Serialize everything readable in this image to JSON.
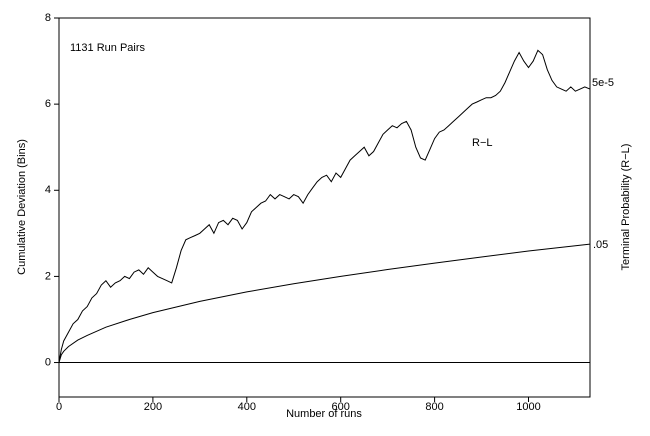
{
  "chart_data": {
    "type": "line",
    "xlabel": "Number of runs",
    "ylabel": "Cumulative Deviation (Bins)",
    "y2label": "Terminal Probability (R−L)",
    "annotations": [
      "1131 Run Pairs",
      "5e-5"
    ],
    "xlim": [
      0,
      1131
    ],
    "xticks": [
      0,
      200,
      400,
      600,
      800,
      1000
    ],
    "ylim": [
      -0.8,
      8
    ],
    "yticks": [
      0,
      2,
      4,
      6,
      8
    ],
    "series": [
      {
        "name": "R−L",
        "color": "#000000",
        "x": [
          0,
          5,
          10,
          20,
          30,
          40,
          50,
          60,
          70,
          80,
          90,
          100,
          110,
          120,
          130,
          140,
          150,
          160,
          170,
          180,
          190,
          200,
          210,
          220,
          230,
          240,
          250,
          260,
          270,
          280,
          290,
          300,
          310,
          320,
          330,
          340,
          350,
          360,
          370,
          380,
          390,
          400,
          410,
          420,
          430,
          440,
          450,
          460,
          470,
          480,
          490,
          500,
          510,
          520,
          530,
          540,
          550,
          560,
          570,
          580,
          590,
          600,
          610,
          620,
          630,
          640,
          650,
          660,
          670,
          680,
          690,
          700,
          710,
          720,
          730,
          740,
          750,
          760,
          770,
          780,
          790,
          800,
          810,
          820,
          830,
          840,
          850,
          860,
          870,
          880,
          890,
          900,
          910,
          920,
          930,
          940,
          950,
          960,
          970,
          980,
          990,
          1000,
          1010,
          1020,
          1030,
          1040,
          1050,
          1060,
          1070,
          1080,
          1090,
          1100,
          1110,
          1120,
          1131
        ],
        "values": [
          0,
          0.3,
          0.5,
          0.7,
          0.9,
          1.0,
          1.2,
          1.3,
          1.5,
          1.6,
          1.8,
          1.9,
          1.75,
          1.85,
          1.9,
          2.0,
          1.95,
          2.1,
          2.15,
          2.05,
          2.2,
          2.1,
          2.0,
          1.95,
          1.9,
          1.85,
          2.2,
          2.6,
          2.85,
          2.9,
          2.95,
          3.0,
          3.1,
          3.2,
          3.0,
          3.25,
          3.3,
          3.2,
          3.35,
          3.3,
          3.1,
          3.25,
          3.5,
          3.6,
          3.7,
          3.75,
          3.9,
          3.8,
          3.9,
          3.85,
          3.8,
          3.9,
          3.85,
          3.7,
          3.9,
          4.05,
          4.2,
          4.3,
          4.35,
          4.2,
          4.4,
          4.3,
          4.5,
          4.7,
          4.8,
          4.9,
          5.0,
          4.8,
          4.9,
          5.1,
          5.3,
          5.4,
          5.5,
          5.45,
          5.55,
          5.6,
          5.4,
          5.0,
          4.75,
          4.7,
          4.95,
          5.2,
          5.35,
          5.4,
          5.5,
          5.6,
          5.7,
          5.8,
          5.9,
          6.0,
          6.05,
          6.1,
          6.15,
          6.15,
          6.2,
          6.3,
          6.5,
          6.75,
          7.0,
          7.2,
          7.0,
          6.85,
          7.0,
          7.25,
          7.15,
          6.8,
          6.55,
          6.4,
          6.35,
          6.3,
          6.4,
          6.3,
          6.35,
          6.4,
          6.35
        ]
      },
      {
        "name": ".05",
        "color": "#000000",
        "x": [
          0,
          5,
          10,
          20,
          40,
          60,
          100,
          150,
          200,
          300,
          400,
          500,
          600,
          700,
          800,
          900,
          1000,
          1131
        ],
        "values": [
          0,
          0.18,
          0.26,
          0.37,
          0.52,
          0.63,
          0.82,
          1.0,
          1.16,
          1.42,
          1.64,
          1.83,
          2.0,
          2.16,
          2.31,
          2.45,
          2.59,
          2.75
        ]
      }
    ]
  }
}
